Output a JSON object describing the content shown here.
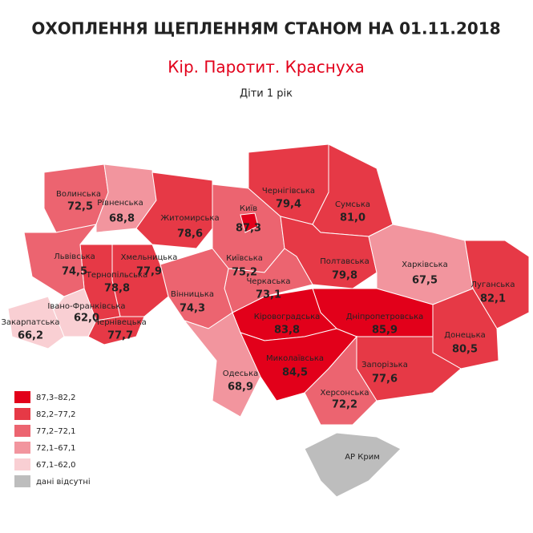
{
  "title": "ОХОПЛЕННЯ ЩЕПЛЕННЯМ СТАНОМ НА 01.11.2018",
  "subtitle": "Кір. Паротит. Краснуха",
  "group": "Діти 1 рік",
  "regions": [
    {
      "name": "Волинська",
      "value": "72,5",
      "color": "#ec6470"
    },
    {
      "name": "Рівненська",
      "value": "68,8",
      "color": "#f2959e"
    },
    {
      "name": "Житомирська",
      "value": "78,6",
      "color": "#e63946"
    },
    {
      "name": "Київ",
      "value": "87,3",
      "color": "#e2001a"
    },
    {
      "name": "Київська",
      "value": "75,2",
      "color": "#ec6470"
    },
    {
      "name": "Чернігівська",
      "value": "79,4",
      "color": "#e63946"
    },
    {
      "name": "Сумська",
      "value": "81,0",
      "color": "#e63946"
    },
    {
      "name": "Полтавська",
      "value": "79,8",
      "color": "#e63946"
    },
    {
      "name": "Харківська",
      "value": "67,5",
      "color": "#f2959e"
    },
    {
      "name": "Луганська",
      "value": "82,1",
      "color": "#e63946"
    },
    {
      "name": "Донецька",
      "value": "80,5",
      "color": "#e63946"
    },
    {
      "name": "Запорізька",
      "value": "77,6",
      "color": "#e63946"
    },
    {
      "name": "Дніпропетровська",
      "value": "85,9",
      "color": "#e2001a"
    },
    {
      "name": "Кіровоградська",
      "value": "83,8",
      "color": "#e2001a"
    },
    {
      "name": "Черкаська",
      "value": "73,1",
      "color": "#ec6470"
    },
    {
      "name": "Вінницька",
      "value": "74,3",
      "color": "#ec6470"
    },
    {
      "name": "Хмельницька",
      "value": "77,9",
      "color": "#e63946"
    },
    {
      "name": "Тернопільська",
      "value": "78,8",
      "color": "#e63946"
    },
    {
      "name": "Львівська",
      "value": "74,5",
      "color": "#ec6470"
    },
    {
      "name": "Івано-Франківська",
      "value": "62,0",
      "color": "#f9cfd3"
    },
    {
      "name": "Закарпатська",
      "value": "66,2",
      "color": "#f9cfd3"
    },
    {
      "name": "Чернівецька",
      "value": "77,7",
      "color": "#e63946"
    },
    {
      "name": "Одеська",
      "value": "68,9",
      "color": "#f2959e"
    },
    {
      "name": "Миколаївська",
      "value": "84,5",
      "color": "#e2001a"
    },
    {
      "name": "Херсонська",
      "value": "72,2",
      "color": "#ec6470"
    },
    {
      "name": "АР Крим",
      "color": "#bdbdbd"
    }
  ],
  "legend": [
    {
      "label": "87,3–82,2",
      "color": "#e2001a"
    },
    {
      "label": "82,2–77,2",
      "color": "#e63946"
    },
    {
      "label": "77,2–72,1",
      "color": "#ec6470"
    },
    {
      "label": "72,1–67,1",
      "color": "#f2959e"
    },
    {
      "label": "67,1–62,0",
      "color": "#f9cfd3"
    },
    {
      "label": "дані відсутні",
      "color": "#bdbdbd"
    }
  ]
}
